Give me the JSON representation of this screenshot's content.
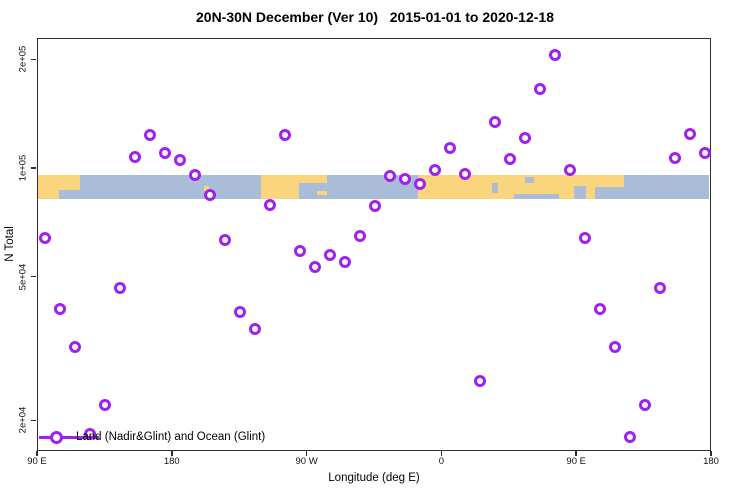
{
  "chart_data": {
    "type": "scatter",
    "title": "20N-30N December (Ver 10)   2015-01-01 to 2020-12-18",
    "xlabel": "Longitude (deg E)",
    "ylabel": "N Total",
    "legend": "Land (Nadir&Glint) and Ocean (Glint)",
    "marker_color": "#a020f0",
    "y_scale": "log10",
    "x_axis_extended_deg_range": [
      90,
      540
    ],
    "x_ticks": [
      {
        "lon": 90,
        "label": "90 E"
      },
      {
        "lon": 180,
        "label": "180"
      },
      {
        "lon": 270,
        "label": "90 W"
      },
      {
        "lon": 360,
        "label": "0"
      },
      {
        "lon": 450,
        "label": "90 E"
      },
      {
        "lon": 540,
        "label": "180"
      }
    ],
    "y_ticks": [
      {
        "value": 20000,
        "label": "2e+04"
      },
      {
        "value": 50000,
        "label": "5e+04"
      },
      {
        "value": 100000,
        "label": "1e+05"
      },
      {
        "value": 200000,
        "label": "2e+05"
      }
    ],
    "points_lon_n": [
      [
        95,
        64400
      ],
      [
        105,
        40900
      ],
      [
        115,
        32100
      ],
      [
        125,
        18400
      ],
      [
        135,
        22200
      ],
      [
        145,
        46800
      ],
      [
        155,
        108000
      ],
      [
        165,
        124200
      ],
      [
        175,
        110800
      ],
      [
        185,
        105900
      ],
      [
        195,
        96200
      ],
      [
        205,
        84700
      ],
      [
        215,
        63600
      ],
      [
        225,
        40200
      ],
      [
        235,
        36000
      ],
      [
        245,
        79500
      ],
      [
        255,
        124200
      ],
      [
        265,
        59300
      ],
      [
        275,
        53500
      ],
      [
        285,
        57800
      ],
      [
        295,
        55300
      ],
      [
        305,
        65200
      ],
      [
        315,
        79000
      ],
      [
        325,
        95600
      ],
      [
        335,
        93800
      ],
      [
        345,
        90900
      ],
      [
        355,
        99400
      ],
      [
        365,
        114300
      ],
      [
        375,
        96900
      ],
      [
        385,
        25900
      ],
      [
        395,
        135000
      ],
      [
        405,
        106600
      ],
      [
        415,
        121900
      ],
      [
        425,
        166600
      ],
      [
        435,
        207000
      ],
      [
        445,
        99400
      ],
      [
        455,
        64400
      ],
      [
        465,
        40900
      ],
      [
        475,
        32100
      ],
      [
        485,
        18100
      ],
      [
        495,
        22200
      ],
      [
        505,
        46800
      ],
      [
        515,
        107300
      ],
      [
        525,
        125000
      ],
      [
        535,
        110800
      ]
    ],
    "map_band": {
      "land_color": "#fbd57e",
      "ocean_color": "#a9bdd9",
      "ocean_base_x": [
        90,
        540
      ],
      "land_rects": [
        {
          "x": [
            90,
            104
          ],
          "y": [
            0,
            1
          ]
        },
        {
          "x": [
            104,
            118
          ],
          "y": [
            0,
            0.62
          ]
        },
        {
          "x": [
            239,
            264
          ],
          "y": [
            0,
            1
          ]
        },
        {
          "x": [
            243,
            283
          ],
          "y": [
            0,
            0.33
          ]
        },
        {
          "x": [
            344,
            481
          ],
          "y": [
            0,
            1
          ]
        },
        {
          "x": [
            201,
            204
          ],
          "y": [
            0.45,
            0.65
          ]
        },
        {
          "x": [
            322,
            327
          ],
          "y": [
            0.05,
            0.25
          ]
        },
        {
          "x": [
            276,
            283
          ],
          "y": [
            0.66,
            0.82
          ]
        }
      ],
      "ocean_rects": [
        {
          "x": [
            448,
            456
          ],
          "y": [
            0.45,
            1
          ]
        },
        {
          "x": [
            462,
            481
          ],
          "y": [
            0.5,
            1
          ]
        },
        {
          "x": [
            415,
            421
          ],
          "y": [
            0.1,
            0.35
          ]
        },
        {
          "x": [
            393,
            397
          ],
          "y": [
            0.35,
            0.75
          ]
        },
        {
          "x": [
            408,
            438
          ],
          "y": [
            0.78,
            1
          ]
        }
      ]
    }
  }
}
